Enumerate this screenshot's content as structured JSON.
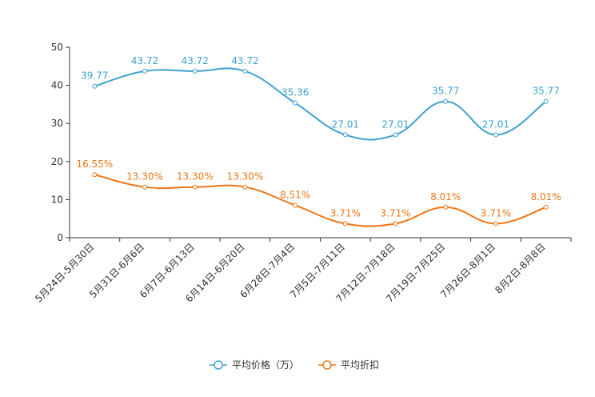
{
  "chart_data": {
    "type": "line",
    "smooth": true,
    "categories": [
      "5月24日-5月30日",
      "5月31日-6月6日",
      "6月7日-6月13日",
      "6月14日-6月20日",
      "6月28日-7月4日",
      "7月5日-7月11日",
      "7月12日-7月18日",
      "7月19日-7月25日",
      "7月26日-8月1日",
      "8月2日-8月8日"
    ],
    "ylim": [
      0,
      50
    ],
    "yticks": [
      0,
      10,
      20,
      30,
      40,
      50
    ],
    "grid": false,
    "legend_position": "bottom-center",
    "series": [
      {
        "name": "平均价格（万）",
        "color": "#3fa1d1",
        "values": [
          39.77,
          43.72,
          43.72,
          43.72,
          35.36,
          27.01,
          27.01,
          35.77,
          27.01,
          35.77
        ],
        "labels": [
          "39.77",
          "43.72",
          "43.72",
          "43.72",
          "35.36",
          "27.01",
          "27.01",
          "35.77",
          "27.01",
          "35.77"
        ]
      },
      {
        "name": "平均折扣",
        "color": "#f07617",
        "values": [
          16.55,
          13.3,
          13.3,
          13.3,
          8.51,
          3.71,
          3.71,
          8.01,
          3.71,
          8.01
        ],
        "labels": [
          "16.55%",
          "13.30%",
          "13.30%",
          "13.30%",
          "8.51%",
          "3.71%",
          "3.71%",
          "8.01%",
          "3.71%",
          "8.01%"
        ]
      }
    ]
  }
}
